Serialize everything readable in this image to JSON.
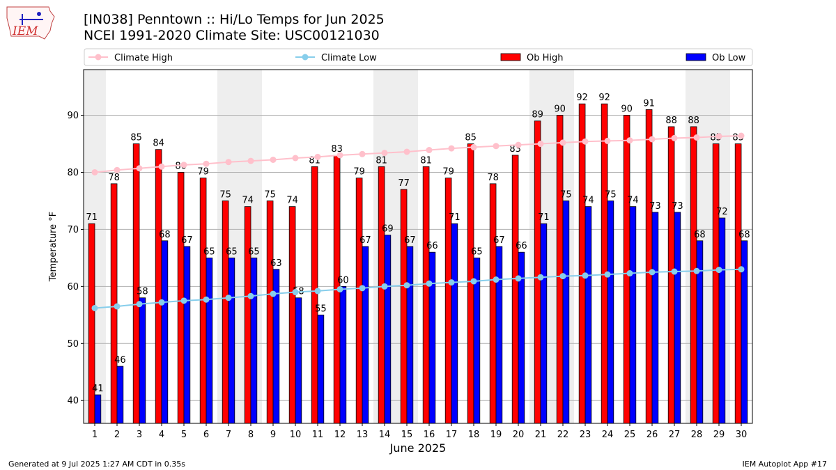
{
  "header": {
    "title_line1": "[IN038] Penntown :: Hi/Lo Temps for Jun 2025",
    "title_line2": "NCEI 1991-2020 Climate Site: USC00121030",
    "logo_text": "IEM"
  },
  "footer": {
    "left": "Generated at 9 Jul 2025 1:27 AM CDT in 0.35s",
    "right": "IEM Autoplot App #17"
  },
  "colors": {
    "ob_high": "#ff0000",
    "ob_low": "#0000ff",
    "climate_high": "#ffc0cb",
    "climate_low": "#87ceeb",
    "weekend_shade": "#eeeeee"
  },
  "chart_data": {
    "type": "bar",
    "xlabel": "June 2025",
    "ylabel": "Temperature °F",
    "ylim": [
      36,
      98
    ],
    "yticks": [
      40,
      50,
      60,
      70,
      80,
      90
    ],
    "grid": true,
    "legend_position": "top",
    "categories": [
      "1",
      "2",
      "3",
      "4",
      "5",
      "6",
      "7",
      "8",
      "9",
      "10",
      "11",
      "12",
      "13",
      "14",
      "15",
      "16",
      "17",
      "18",
      "19",
      "20",
      "21",
      "22",
      "23",
      "24",
      "25",
      "26",
      "27",
      "28",
      "29",
      "30"
    ],
    "shaded_days": [
      1,
      7,
      8,
      14,
      15,
      21,
      22,
      28,
      29
    ],
    "series": [
      {
        "name": "Ob High",
        "kind": "bar",
        "color": "#ff0000",
        "values": [
          71,
          78,
          85,
          84,
          80,
          79,
          75,
          74,
          75,
          74,
          81,
          83,
          79,
          81,
          77,
          81,
          79,
          85,
          78,
          83,
          89,
          90,
          92,
          92,
          90,
          91,
          88,
          88,
          85,
          85
        ]
      },
      {
        "name": "Ob Low",
        "kind": "bar",
        "color": "#0000ff",
        "values": [
          41,
          46,
          58,
          68,
          67,
          65,
          65,
          65,
          63,
          58,
          55,
          60,
          67,
          69,
          67,
          66,
          71,
          65,
          67,
          66,
          71,
          75,
          74,
          75,
          74,
          73,
          73,
          68,
          72,
          68
        ]
      },
      {
        "name": "Climate High",
        "kind": "line",
        "color": "#ffc0cb",
        "values": [
          80.0,
          80.4,
          80.7,
          81.0,
          81.3,
          81.5,
          81.8,
          82.0,
          82.2,
          82.5,
          82.7,
          83.0,
          83.2,
          83.4,
          83.6,
          83.9,
          84.2,
          84.4,
          84.6,
          84.8,
          85.0,
          85.2,
          85.4,
          85.5,
          85.6,
          85.8,
          86.0,
          86.1,
          86.3,
          86.4
        ]
      },
      {
        "name": "Climate Low",
        "kind": "line",
        "color": "#87ceeb",
        "values": [
          56.2,
          56.5,
          56.9,
          57.2,
          57.5,
          57.7,
          58.0,
          58.3,
          58.7,
          59.0,
          59.2,
          59.5,
          59.7,
          60.0,
          60.2,
          60.5,
          60.7,
          60.9,
          61.2,
          61.4,
          61.6,
          61.8,
          61.9,
          62.1,
          62.3,
          62.5,
          62.6,
          62.7,
          62.9,
          63.0
        ]
      }
    ],
    "legend_order": [
      "Climate High",
      "Climate Low",
      "Ob High",
      "Ob Low"
    ]
  }
}
